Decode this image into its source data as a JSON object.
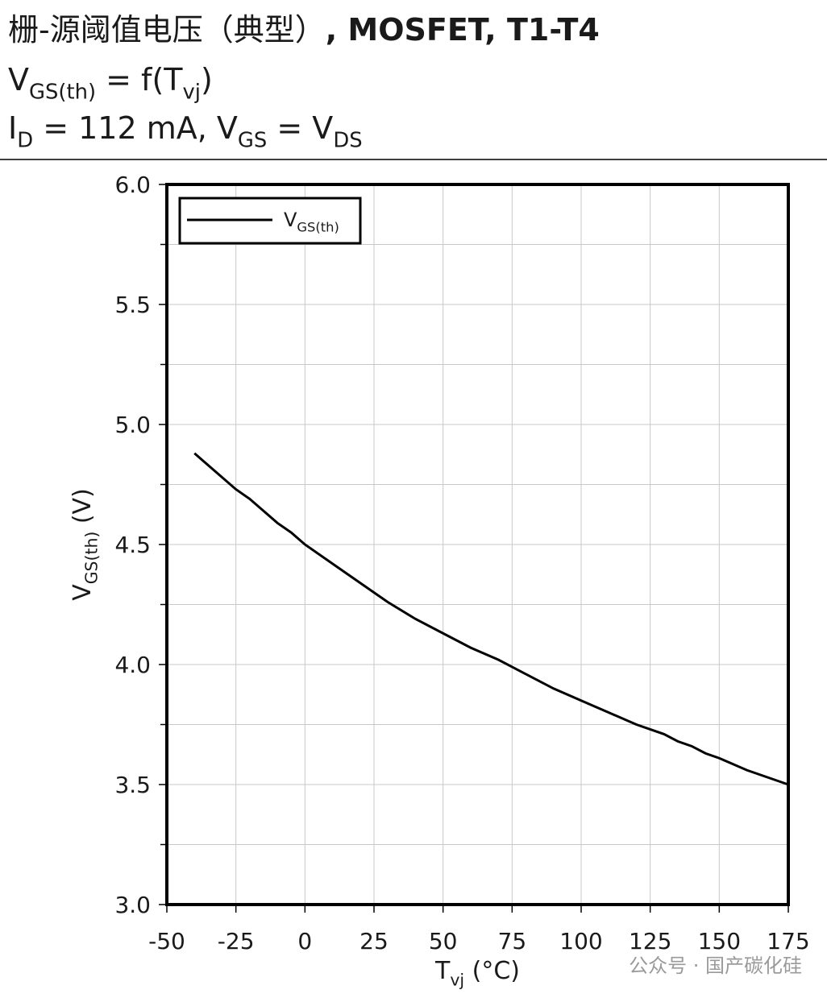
{
  "chart_data": {
    "type": "line",
    "title": [
      {
        "text": "栅-源阈值电压（典型）"
      },
      {
        "text": ", MOSFET, T1-T4",
        "bold": true
      }
    ],
    "formula": [
      {
        "text": "V"
      },
      {
        "text": "GS(th)",
        "sub": true
      },
      {
        "text": " = f(T"
      },
      {
        "text": "vj",
        "sub": true
      },
      {
        "text": ")"
      }
    ],
    "conditions": [
      {
        "text": "I"
      },
      {
        "text": "D",
        "sub": true
      },
      {
        "text": " = 112 mA, V"
      },
      {
        "text": "GS",
        "sub": true
      },
      {
        "text": " = V"
      },
      {
        "text": "DS",
        "sub": true
      }
    ],
    "x_label": [
      {
        "text": "T"
      },
      {
        "text": "vj",
        "sub": true
      },
      {
        "text": " (°C)"
      }
    ],
    "y_label": [
      {
        "text": "V"
      },
      {
        "text": "GS(th)",
        "sub": true
      },
      {
        "text": " (V)"
      }
    ],
    "x": [
      -40,
      -25,
      -20,
      -10,
      -5,
      0,
      10,
      25,
      30,
      40,
      50,
      60,
      70,
      80,
      90,
      100,
      110,
      120,
      130,
      135,
      140,
      145,
      150,
      160,
      175
    ],
    "series": [
      {
        "name": [
          {
            "text": "V"
          },
          {
            "text": "GS(th)",
            "sub": true
          }
        ],
        "color": "#000000",
        "values": [
          4.88,
          4.73,
          4.69,
          4.59,
          4.55,
          4.5,
          4.42,
          4.3,
          4.26,
          4.19,
          4.13,
          4.07,
          4.02,
          3.96,
          3.9,
          3.85,
          3.8,
          3.75,
          3.71,
          3.68,
          3.66,
          3.63,
          3.61,
          3.56,
          3.5
        ]
      }
    ],
    "xlim": [
      -50,
      175
    ],
    "xticks": [
      -50,
      -25,
      0,
      25,
      50,
      75,
      100,
      125,
      150,
      175
    ],
    "ylim": [
      3.0,
      6.0
    ],
    "yticks": [
      {
        "value": 3.0,
        "label": "3.0"
      },
      {
        "value": 3.5,
        "label": "3.5"
      },
      {
        "value": 4.0,
        "label": "4.0"
      },
      {
        "value": 4.5,
        "label": "4.5"
      },
      {
        "value": 5.0,
        "label": "5.0"
      },
      {
        "value": 5.5,
        "label": "5.5"
      },
      {
        "value": 6.0,
        "label": "6.0"
      }
    ],
    "y_minor_ticks": [
      3.25,
      3.75,
      4.25,
      4.75,
      5.25,
      5.75
    ],
    "grid": true,
    "legend": "upper left",
    "watermark": "公众号 · 国产碳化硅"
  }
}
